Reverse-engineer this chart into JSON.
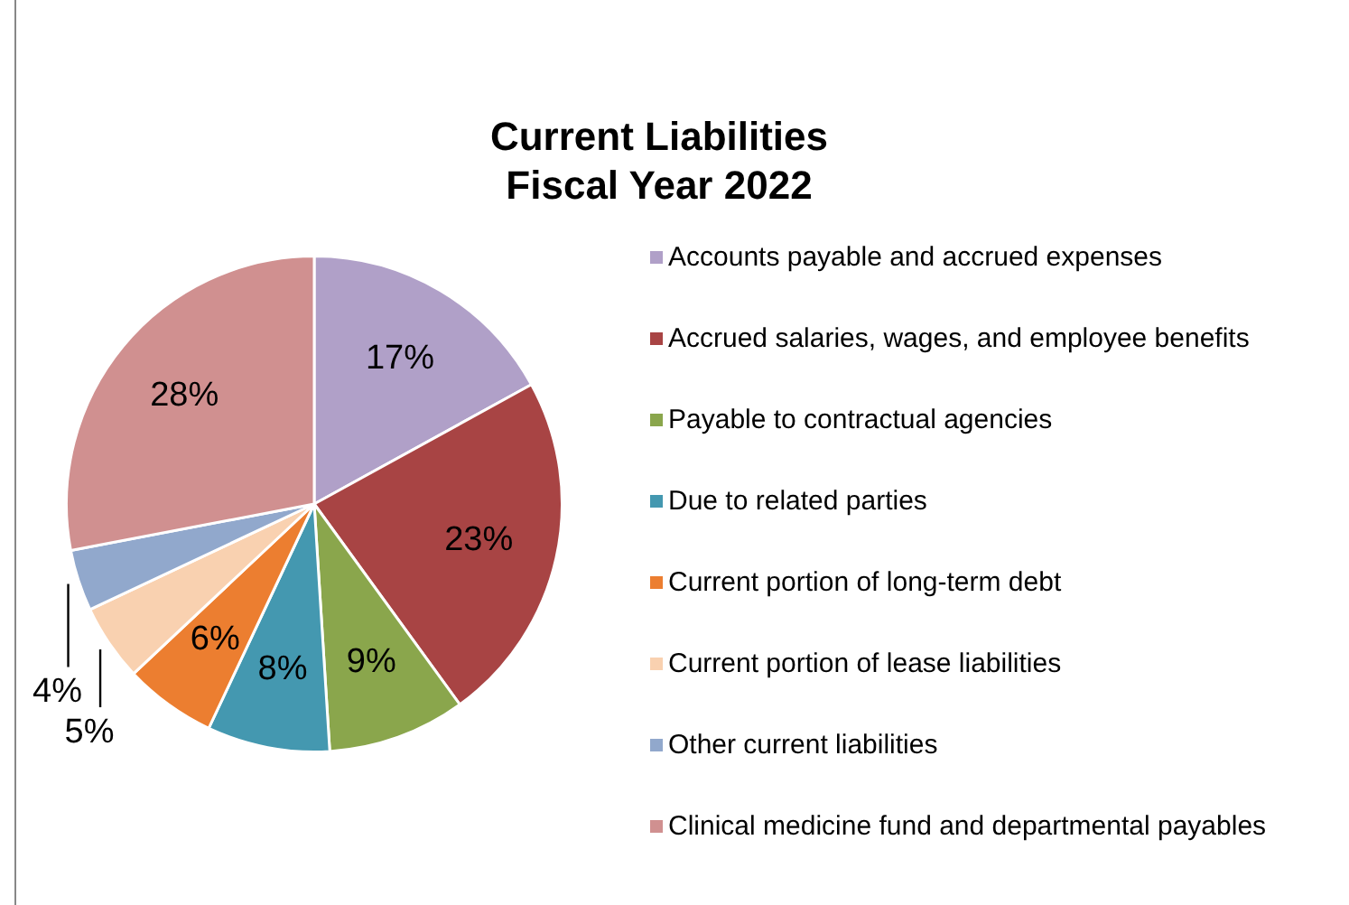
{
  "chart_data": {
    "type": "pie",
    "title": "Current Liabilities\nFiscal Year 2022",
    "categories": [
      "Accounts payable and accrued expenses",
      "Accrued salaries, wages, and employee benefits",
      "Payable to contractual agencies",
      "Due to related parties",
      "Current portion of long-term debt",
      "Current portion of lease liabilities",
      "Other current liabilities",
      "Clinical medicine fund and departmental payables"
    ],
    "values": [
      17,
      23,
      9,
      8,
      6,
      5,
      4,
      28
    ],
    "value_labels": [
      "17%",
      "23%",
      "9%",
      "8%",
      "6%",
      "5%",
      "4%",
      "28%"
    ],
    "colors": [
      "#b0a0c8",
      "#a84444",
      "#8aa64c",
      "#4498b0",
      "#ec7e30",
      "#f9d1b0",
      "#91a8cc",
      "#d09090"
    ],
    "legend": "right"
  }
}
